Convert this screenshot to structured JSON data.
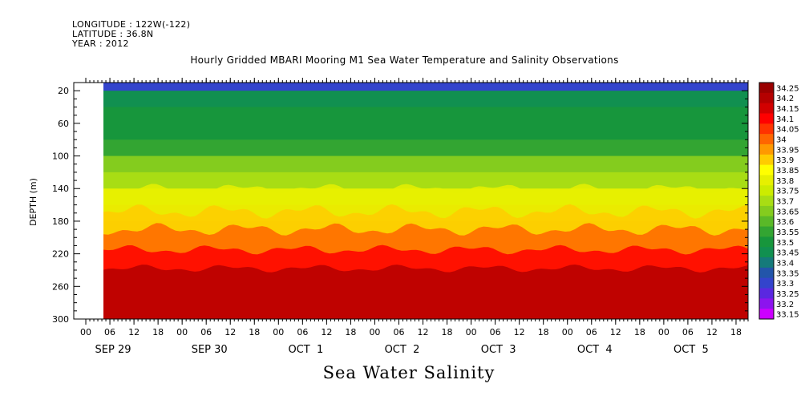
{
  "header": {
    "longitude": "LONGITUDE : 122W(-122)",
    "latitude": "LATITUDE : 36.8N",
    "year": "YEAR : 2012"
  },
  "chart_data": {
    "type": "heatmap",
    "title": "Hourly Gridded MBARI Mooring M1 Sea Water Temperature and Salinity Observations",
    "xlabel": "Sea Water Salinity",
    "ylabel": "DEPTH (m)",
    "ylim": [
      300,
      10
    ],
    "y_axis_inverted": true,
    "y_ticks": [
      20,
      60,
      100,
      140,
      180,
      220,
      260,
      300
    ],
    "x_hour_ticks": [
      "00",
      "06",
      "12",
      "18",
      "00",
      "06",
      "12",
      "18",
      "00",
      "06",
      "12",
      "18",
      "00",
      "06",
      "12",
      "18",
      "00",
      "06",
      "12",
      "18",
      "00",
      "06",
      "12",
      "18",
      "00",
      "06",
      "12",
      "18"
    ],
    "x_date_labels": [
      "SEP 29",
      "SEP 30",
      "OCT  1",
      "OCT  2",
      "OCT  3",
      "OCT  4",
      "OCT  5"
    ],
    "legend_position": "right",
    "colorbar_levels": [
      "34.25",
      "34.2",
      "34.15",
      "34.1",
      "34.05",
      "34",
      "33.95",
      "33.9",
      "33.85",
      "33.8",
      "33.75",
      "33.7",
      "33.65",
      "33.6",
      "33.55",
      "33.5",
      "33.45",
      "33.4",
      "33.35",
      "33.3",
      "33.25",
      "33.2",
      "33.15"
    ],
    "colorbar_colors": [
      "#9a0000",
      "#b40000",
      "#d20000",
      "#ff0000",
      "#ff3300",
      "#ff6600",
      "#ff9900",
      "#ffcc00",
      "#ffff00",
      "#e6f000",
      "#ccec00",
      "#a8dd14",
      "#84cc1e",
      "#5ab928",
      "#33a532",
      "#17963c",
      "#119050",
      "#157a7a",
      "#2255aa",
      "#3344cc",
      "#5a28e0",
      "#8c14ee",
      "#cc00ff"
    ],
    "depth_profile": [
      {
        "depth": 10,
        "value": 33.3
      },
      {
        "depth": 30,
        "value": 33.43
      },
      {
        "depth": 50,
        "value": 33.5
      },
      {
        "depth": 70,
        "value": 33.52
      },
      {
        "depth": 90,
        "value": 33.56
      },
      {
        "depth": 110,
        "value": 33.64
      },
      {
        "depth": 130,
        "value": 33.72
      },
      {
        "depth": 150,
        "value": 33.8
      },
      {
        "depth": 170,
        "value": 33.88
      },
      {
        "depth": 190,
        "value": 33.98
      },
      {
        "depth": 210,
        "value": 34.08
      },
      {
        "depth": 230,
        "value": 34.16
      },
      {
        "depth": 250,
        "value": 34.2
      },
      {
        "depth": 270,
        "value": 34.21
      },
      {
        "depth": 290,
        "value": 34.18
      },
      {
        "depth": 300,
        "value": 34.14
      }
    ]
  }
}
